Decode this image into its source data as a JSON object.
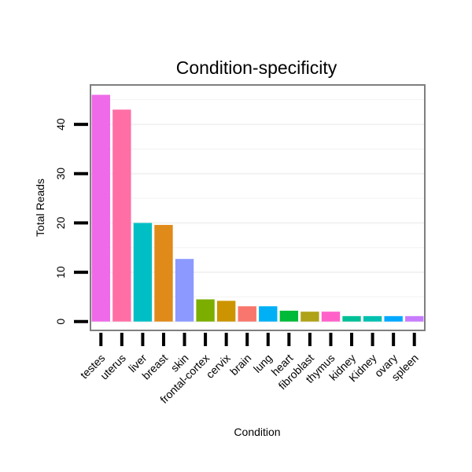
{
  "chart_data": {
    "type": "bar",
    "title": "Condition-specificity",
    "xlabel": "Condition",
    "ylabel": "Total Reads",
    "ylim": [
      -1.8,
      48
    ],
    "yticks": [
      0,
      10,
      20,
      30,
      40
    ],
    "grid": true,
    "legend": "none",
    "categories": [
      "testes",
      "uterus",
      "liver",
      "breast",
      "skin",
      "frontal-cortex",
      "cervix",
      "brain",
      "lung",
      "heart",
      "fibroblast",
      "thymus",
      "kidney",
      "Kidney",
      "ovary",
      "spleen"
    ],
    "values": [
      46,
      43,
      20,
      19.6,
      12.7,
      4.5,
      4.2,
      3.1,
      3.1,
      2.2,
      2.0,
      2.0,
      1.1,
      1.1,
      1.1,
      1.1
    ],
    "colors": [
      "#EE6AE8",
      "#FF6FA6",
      "#00BFC4",
      "#E08A1A",
      "#8C9AFF",
      "#7CAE00",
      "#CC9400",
      "#F8766D",
      "#00B0F6",
      "#00BA38",
      "#AFA218",
      "#FF61C9",
      "#00BF96",
      "#00C0AF",
      "#00A9FF",
      "#C77CFF"
    ]
  }
}
